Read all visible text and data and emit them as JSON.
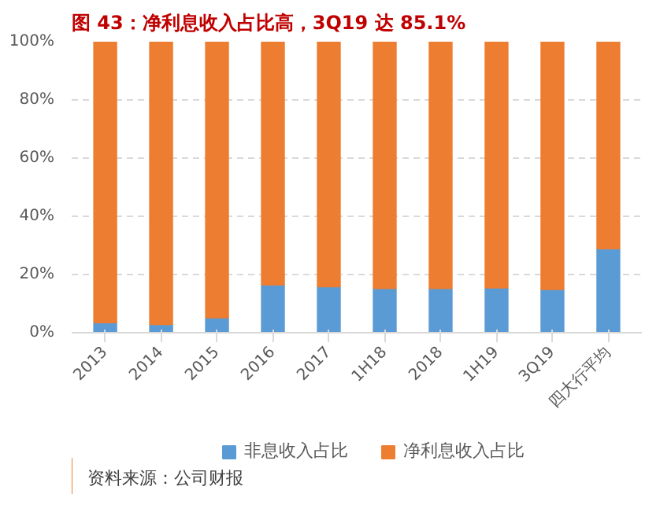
{
  "chart_data": {
    "type": "bar",
    "title": "图 43：净利息收入占比高，3Q19 达 85.1%",
    "categories": [
      "2013",
      "2014",
      "2015",
      "2016",
      "2017",
      "1H18",
      "2018",
      "1H19",
      "3Q19",
      "四大行平均"
    ],
    "series": [
      {
        "name": "非息收入占比",
        "color": "#5b9bd5",
        "values": [
          3.5,
          2.9,
          5.2,
          16.5,
          15.9,
          15.3,
          15.3,
          15.5,
          14.9,
          28.9
        ]
      },
      {
        "name": "净利息收入占比",
        "color": "#ed7d31",
        "values": [
          96.5,
          97.1,
          94.8,
          83.5,
          84.1,
          84.7,
          84.7,
          84.5,
          85.1,
          71.1
        ]
      }
    ],
    "stacked": true,
    "ylim": [
      0,
      100
    ],
    "yticks": [
      {
        "value": 0,
        "label": "0%"
      },
      {
        "value": 20,
        "label": "20%"
      },
      {
        "value": 40,
        "label": "40%"
      },
      {
        "value": 60,
        "label": "60%"
      },
      {
        "value": 80,
        "label": "80%"
      },
      {
        "value": 100,
        "label": "100%"
      }
    ],
    "grid": "y",
    "legend": "bottom",
    "annotations": [
      "资料来源：公司财报"
    ]
  }
}
